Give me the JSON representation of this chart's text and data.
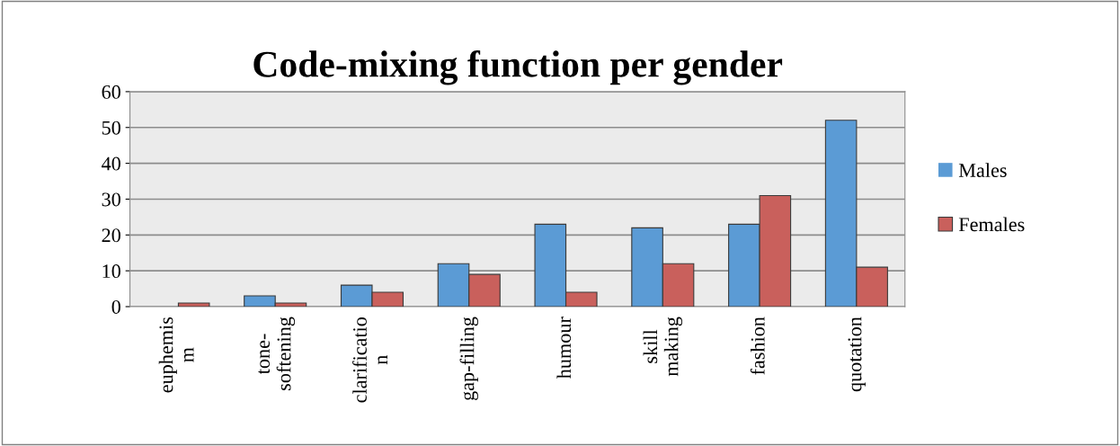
{
  "chart_data": {
    "type": "bar",
    "title": "Code-mixing function per gender",
    "categories": [
      "euphemis\nm",
      "tone-\nsoftening",
      "clarificatio\nn",
      "gap-filling",
      "humour",
      "skill\nmaking",
      "fashion",
      "quotation"
    ],
    "series": [
      {
        "name": "Males",
        "color": "#5b9bd5",
        "values": [
          0,
          3,
          6,
          12,
          23,
          22,
          23,
          52
        ]
      },
      {
        "name": "Females",
        "color": "#c9605c",
        "values": [
          1,
          1,
          4,
          9,
          4,
          12,
          31,
          11
        ]
      }
    ],
    "ylim": [
      0,
      60
    ],
    "yticks": [
      0,
      10,
      20,
      30,
      40,
      50,
      60
    ],
    "grid": "y",
    "legend": "right"
  }
}
